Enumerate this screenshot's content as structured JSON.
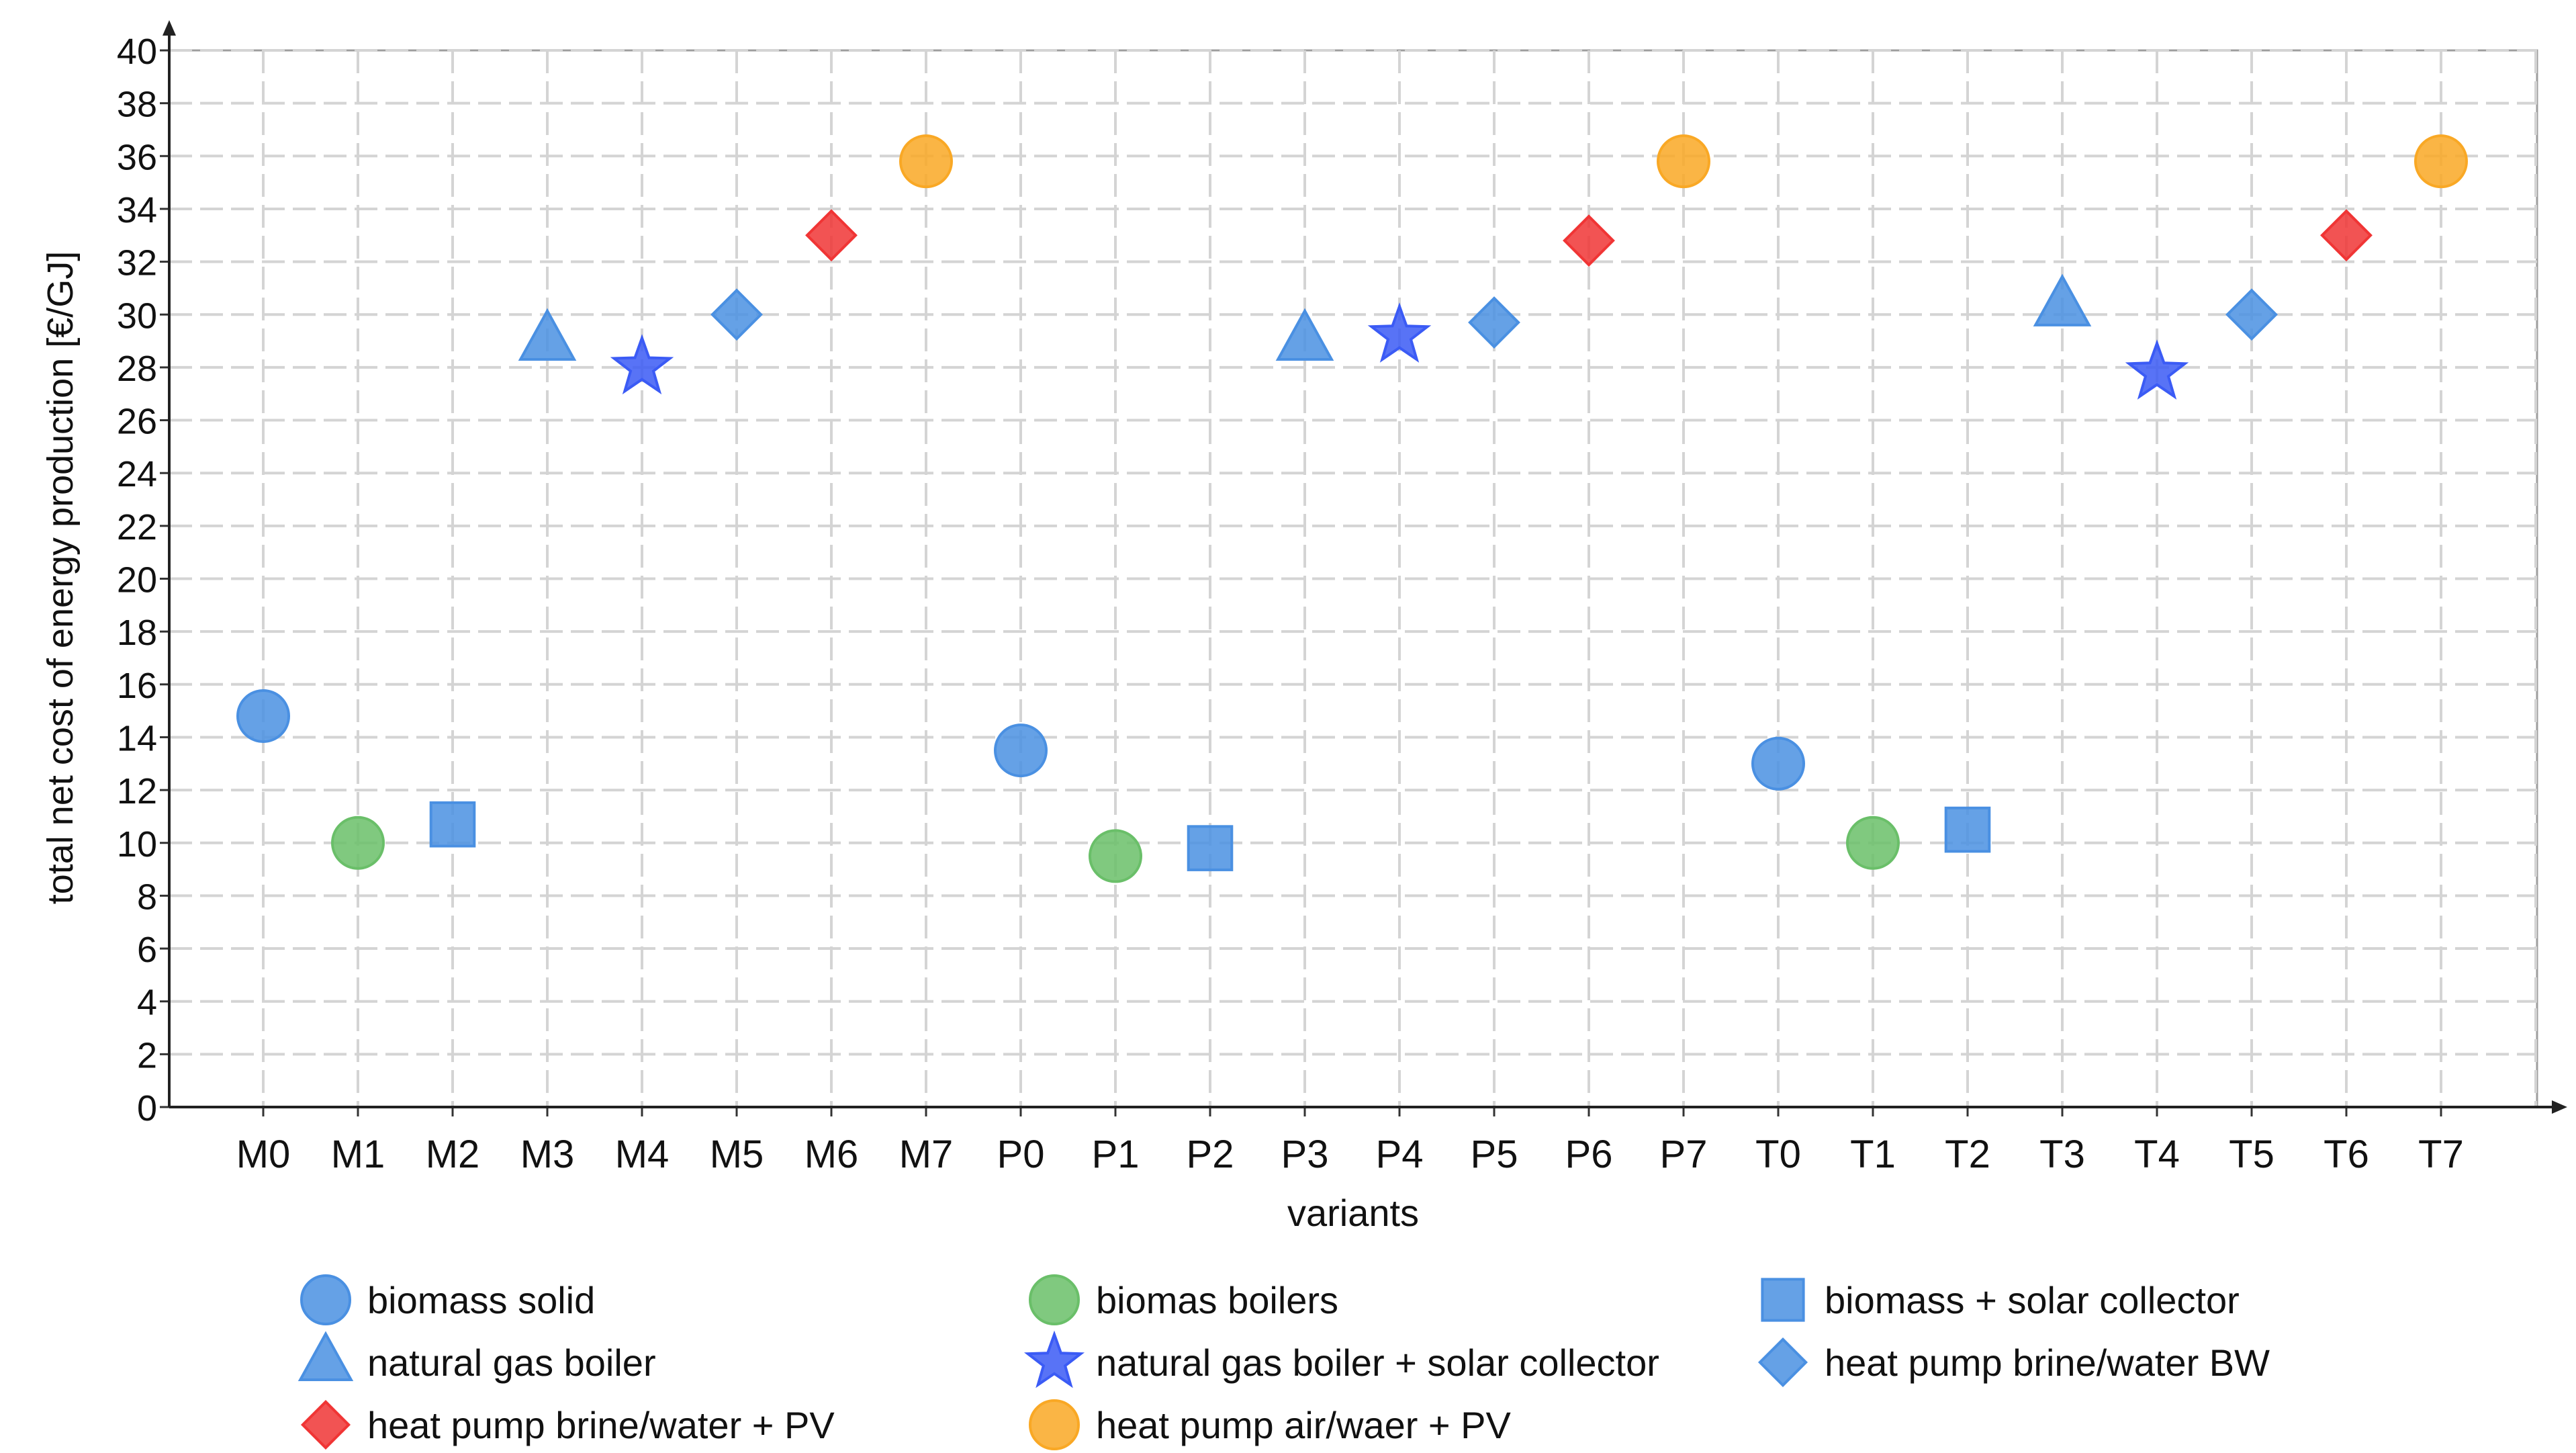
{
  "chart_data": {
    "type": "scatter",
    "title": "",
    "xlabel": "variants",
    "ylabel": "total net cost of energy production [€/GJ]",
    "categories": [
      "M0",
      "M1",
      "M2",
      "M3",
      "M4",
      "M5",
      "M6",
      "M7",
      "P0",
      "P1",
      "P2",
      "P3",
      "P4",
      "P5",
      "P6",
      "P7",
      "T0",
      "T1",
      "T2",
      "T3",
      "T4",
      "T5",
      "T6",
      "T7"
    ],
    "ylim": [
      0,
      40
    ],
    "ytick_step": 2,
    "grid": true,
    "legend_position": "bottom",
    "series": [
      {
        "name": "biomass solid",
        "marker": "circle",
        "color": "#4a90e2",
        "points": [
          {
            "x": "M0",
            "y": 14.8
          },
          {
            "x": "P0",
            "y": 13.5
          },
          {
            "x": "T0",
            "y": 13.0
          }
        ]
      },
      {
        "name": "biomas boilers",
        "marker": "circle",
        "color": "#6abf69",
        "points": [
          {
            "x": "M1",
            "y": 10.0
          },
          {
            "x": "P1",
            "y": 9.5
          },
          {
            "x": "T1",
            "y": 10.0
          }
        ]
      },
      {
        "name": "biomass + solar collector",
        "marker": "square",
        "color": "#4a90e2",
        "points": [
          {
            "x": "M2",
            "y": 10.7
          },
          {
            "x": "P2",
            "y": 9.8
          },
          {
            "x": "T2",
            "y": 10.5
          }
        ]
      },
      {
        "name": "natural gas boiler",
        "marker": "triangle",
        "color": "#4a90e2",
        "points": [
          {
            "x": "M3",
            "y": 29.0
          },
          {
            "x": "P3",
            "y": 29.0
          },
          {
            "x": "T3",
            "y": 30.3
          }
        ]
      },
      {
        "name": "natural gas boiler + solar collector",
        "marker": "star",
        "color": "#3b5bf5",
        "points": [
          {
            "x": "M4",
            "y": 28.0
          },
          {
            "x": "P4",
            "y": 29.2
          },
          {
            "x": "T4",
            "y": 27.8
          }
        ]
      },
      {
        "name": "heat pump brine/water BW",
        "marker": "diamond",
        "color": "#4a90e2",
        "points": [
          {
            "x": "M5",
            "y": 30.0
          },
          {
            "x": "P5",
            "y": 29.7
          },
          {
            "x": "T5",
            "y": 30.0
          }
        ]
      },
      {
        "name": "heat pump brine/water + PV",
        "marker": "diamond",
        "color": "#f03535",
        "points": [
          {
            "x": "M6",
            "y": 33.0
          },
          {
            "x": "P6",
            "y": 32.8
          },
          {
            "x": "T6",
            "y": 33.0
          }
        ]
      },
      {
        "name": "heat pump air/waer + PV",
        "marker": "circle",
        "color": "#f9a825",
        "points": [
          {
            "x": "M7",
            "y": 35.8
          },
          {
            "x": "P7",
            "y": 35.8
          },
          {
            "x": "T7",
            "y": 35.8
          }
        ]
      }
    ]
  }
}
